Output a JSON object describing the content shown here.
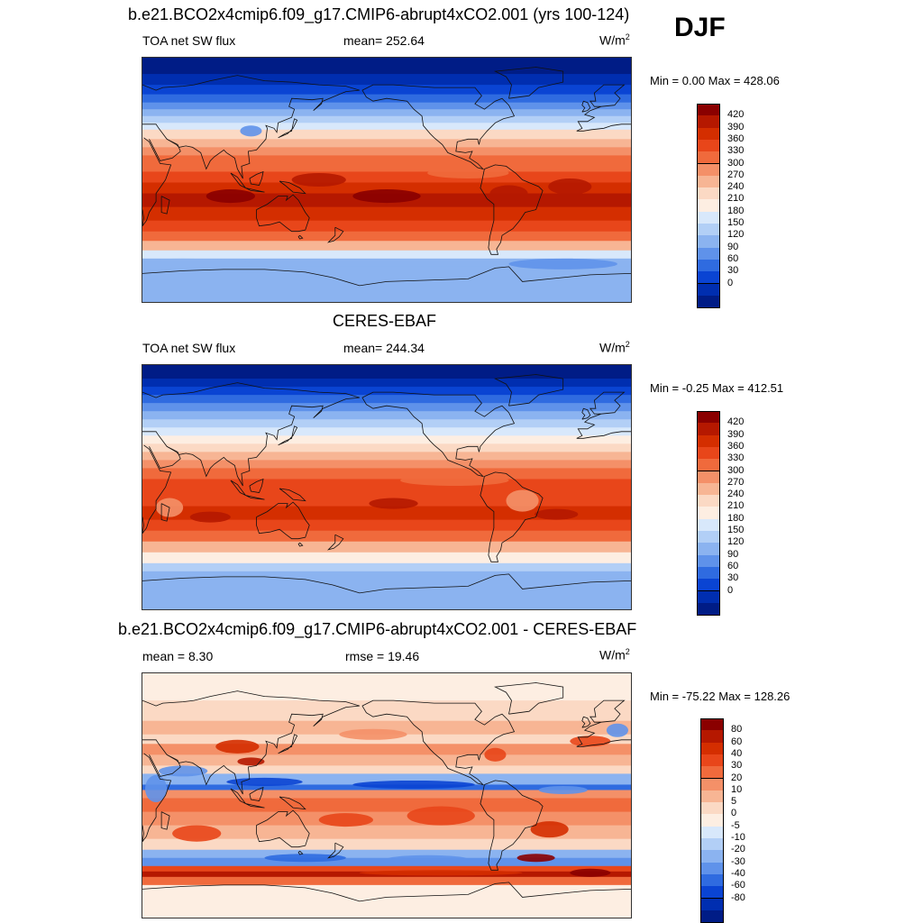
{
  "figure": {
    "season": "DJF",
    "panels": [
      {
        "title": "b.e21.BCO2x4cmip6.f09_g17.CMIP6-abrupt4xCO2.001 (yrs 100-124)",
        "left_text": "TOA net SW flux",
        "center_text": "mean= 252.64",
        "units": "W/m",
        "units_sup": "2",
        "minmax": "Min =   0.00 Max = 428.06",
        "colorbar": {
          "labels": [
            "420",
            "390",
            "360",
            "330",
            "300",
            "270",
            "240",
            "210",
            "180",
            "150",
            "120",
            "90",
            "60",
            "30",
            "0"
          ],
          "colors": [
            "#8a0000",
            "#b51800",
            "#d42e00",
            "#e8461a",
            "#f06a3c",
            "#f49068",
            "#f7b594",
            "#fbd9c4",
            "#fdeee2",
            "#d8e8fb",
            "#b2cff6",
            "#8bb3f0",
            "#5f92ea",
            "#2f6be0",
            "#0a44d3",
            "#002eb0",
            "#001c86"
          ]
        },
        "field": "model"
      },
      {
        "title": "CERES-EBAF",
        "left_text": "TOA net SW flux",
        "center_text": "mean= 244.34",
        "units": "W/m",
        "units_sup": "2",
        "minmax": "Min =  -0.25 Max = 412.51",
        "colorbar": {
          "labels": [
            "420",
            "390",
            "360",
            "330",
            "300",
            "270",
            "240",
            "210",
            "180",
            "150",
            "120",
            "90",
            "60",
            "30",
            "0"
          ],
          "colors": [
            "#8a0000",
            "#b51800",
            "#d42e00",
            "#e8461a",
            "#f06a3c",
            "#f49068",
            "#f7b594",
            "#fbd9c4",
            "#fdeee2",
            "#d8e8fb",
            "#b2cff6",
            "#8bb3f0",
            "#5f92ea",
            "#2f6be0",
            "#0a44d3",
            "#002eb0",
            "#001c86"
          ]
        },
        "field": "obs"
      },
      {
        "title": "b.e21.BCO2x4cmip6.f09_g17.CMIP6-abrupt4xCO2.001 - CERES-EBAF",
        "left_text": "mean =   8.30",
        "center_text": "rmse =  19.46",
        "units": "W/m",
        "units_sup": "2",
        "minmax": "Min = -75.22 Max = 128.26",
        "colorbar": {
          "labels": [
            "80",
            "60",
            "40",
            "30",
            "20",
            "10",
            "5",
            "0",
            "-5",
            "-10",
            "-20",
            "-30",
            "-40",
            "-60",
            "-80"
          ],
          "colors": [
            "#8a0000",
            "#b51800",
            "#d42e00",
            "#e8461a",
            "#f06a3c",
            "#f49068",
            "#f7b594",
            "#fbd9c4",
            "#fdeee2",
            "#d8e8fb",
            "#b2cff6",
            "#8bb3f0",
            "#5f92ea",
            "#2f6be0",
            "#0a44d3",
            "#002eb0",
            "#001c86"
          ]
        },
        "field": "diff"
      }
    ]
  }
}
